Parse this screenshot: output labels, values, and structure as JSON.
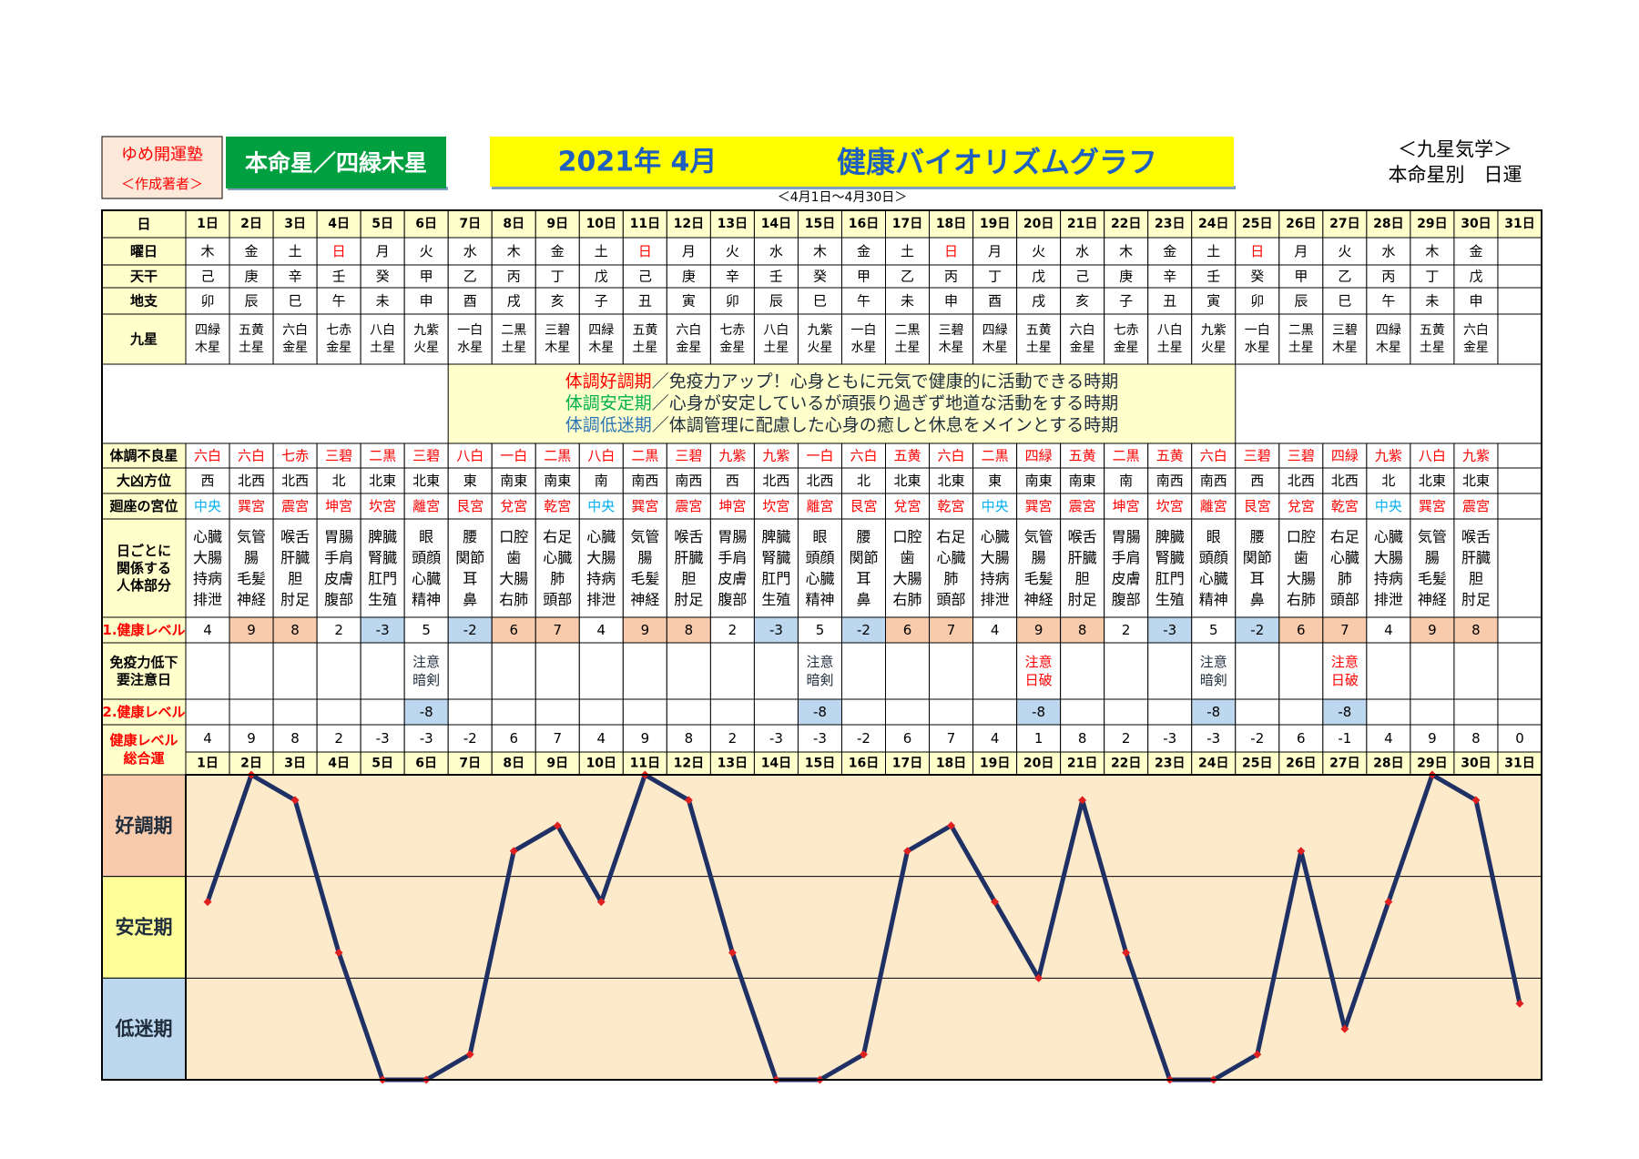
{
  "header": {
    "school": "ゆめ開運塾",
    "author": "＜作成著者＞",
    "honmei": "本命星／四緑木星",
    "year_month": "2021年 4月",
    "title": "健康バイオリズムグラフ",
    "right_1": "＜九星気学＞",
    "right_2": "本命星別　日運",
    "period": "＜4月1日～4月30日＞"
  },
  "table": {
    "labels": {
      "day": "日",
      "weekday": "曜日",
      "stem": "天干",
      "branch": "地支",
      "star": "九星",
      "bad_star": "体調不良星",
      "bad_dir": "大凶方位",
      "palace": "廻座の宮位",
      "body": [
        "日ごとに",
        "関係する",
        "人体部分"
      ],
      "level1": "1.健康レベル",
      "immune": [
        "免疫力低下",
        "要注意日"
      ],
      "level2": "2.健康レベル",
      "total": [
        "健康レベル",
        "総合運"
      ]
    },
    "weekday": [
      {
        "text": "木"
      },
      {
        "text": "金"
      },
      {
        "text": "土"
      },
      {
        "text": "日",
        "color": "#ff0000"
      },
      {
        "text": "月"
      },
      {
        "text": "火"
      },
      {
        "text": "水"
      },
      {
        "text": "木"
      },
      {
        "text": "金"
      },
      {
        "text": "土"
      },
      {
        "text": "日",
        "color": "#ff0000"
      },
      {
        "text": "月"
      },
      {
        "text": "火"
      },
      {
        "text": "水"
      },
      {
        "text": "木"
      },
      {
        "text": "金"
      },
      {
        "text": "土"
      },
      {
        "text": "日",
        "color": "#ff0000"
      },
      {
        "text": "月"
      },
      {
        "text": "火"
      },
      {
        "text": "水"
      },
      {
        "text": "木"
      },
      {
        "text": "金"
      },
      {
        "text": "土"
      },
      {
        "text": "日",
        "color": "#ff0000"
      },
      {
        "text": "月"
      },
      {
        "text": "火"
      },
      {
        "text": "水"
      },
      {
        "text": "木"
      },
      {
        "text": "金"
      },
      null
    ],
    "stem": [
      "己",
      "庚",
      "辛",
      "壬",
      "癸",
      "甲",
      "乙",
      "丙",
      "丁",
      "戊",
      "己",
      "庚",
      "辛",
      "壬",
      "癸",
      "甲",
      "乙",
      "丙",
      "丁",
      "戊",
      "己",
      "庚",
      "辛",
      "壬",
      "癸",
      "甲",
      "乙",
      "丙",
      "丁",
      "戊",
      null
    ],
    "branch": [
      "卯",
      "辰",
      "巳",
      "午",
      "未",
      "申",
      "酉",
      "戌",
      "亥",
      "子",
      "丑",
      "寅",
      "卯",
      "辰",
      "巳",
      "午",
      "未",
      "申",
      "酉",
      "戌",
      "亥",
      "子",
      "丑",
      "寅",
      "卯",
      "辰",
      "巳",
      "午",
      "未",
      "申",
      null
    ],
    "star": [
      [
        "四緑",
        "木星"
      ],
      [
        "五黄",
        "土星"
      ],
      [
        "六白",
        "金星"
      ],
      [
        "七赤",
        "金星"
      ],
      [
        "八白",
        "土星"
      ],
      [
        "九紫",
        "火星"
      ],
      [
        "一白",
        "水星"
      ],
      [
        "二黒",
        "土星"
      ],
      [
        "三碧",
        "木星"
      ],
      [
        "四緑",
        "木星"
      ],
      [
        "五黄",
        "土星"
      ],
      [
        "六白",
        "金星"
      ],
      [
        "七赤",
        "金星"
      ],
      [
        "八白",
        "土星"
      ],
      [
        "九紫",
        "火星"
      ],
      [
        "一白",
        "水星"
      ],
      [
        "二黒",
        "土星"
      ],
      [
        "三碧",
        "木星"
      ],
      [
        "四緑",
        "木星"
      ],
      [
        "五黄",
        "土星"
      ],
      [
        "六白",
        "金星"
      ],
      [
        "七赤",
        "金星"
      ],
      [
        "八白",
        "土星"
      ],
      [
        "九紫",
        "火星"
      ],
      [
        "一白",
        "水星"
      ],
      [
        "二黒",
        "土星"
      ],
      [
        "三碧",
        "木星"
      ],
      [
        "四緑",
        "木星"
      ],
      [
        "五黄",
        "土星"
      ],
      [
        "六白",
        "金星"
      ],
      null
    ],
    "bad_star": [
      "六白",
      "六白",
      "七赤",
      "三碧",
      "二黒",
      "三碧",
      "八白",
      "一白",
      "二黒",
      "八白",
      "二黒",
      "三碧",
      "九紫",
      "九紫",
      "一白",
      "六白",
      "五黄",
      "六白",
      "二黒",
      "四緑",
      "五黄",
      "二黒",
      "五黄",
      "六白",
      "三碧",
      "三碧",
      "四緑",
      "九紫",
      "八白",
      "九紫",
      null
    ],
    "bad_dir": [
      "西",
      "北西",
      "北西",
      "北",
      "北東",
      "北東",
      "東",
      "南東",
      "南東",
      "南",
      "南西",
      "南西",
      "西",
      "北西",
      "北西",
      "北",
      "北東",
      "北東",
      "東",
      "南東",
      "南東",
      "南",
      "南西",
      "南西",
      "西",
      "北西",
      "北西",
      "北",
      "北東",
      "北東",
      null
    ],
    "palace": [
      {
        "name": "中央",
        "color": "#00b0f0"
      },
      {
        "name": "巽宮",
        "color": "#ff0000"
      },
      {
        "name": "震宮",
        "color": "#ff0000"
      },
      {
        "name": "坤宮",
        "color": "#ff0000"
      },
      {
        "name": "坎宮",
        "color": "#ff0000"
      },
      {
        "name": "離宮",
        "color": "#ff0000"
      },
      {
        "name": "艮宮",
        "color": "#ff0000"
      },
      {
        "name": "兌宮",
        "color": "#ff0000"
      },
      {
        "name": "乾宮",
        "color": "#ff0000"
      },
      {
        "name": "中央",
        "color": "#00b0f0"
      },
      {
        "name": "巽宮",
        "color": "#ff0000"
      },
      {
        "name": "震宮",
        "color": "#ff0000"
      },
      {
        "name": "坤宮",
        "color": "#ff0000"
      },
      {
        "name": "坎宮",
        "color": "#ff0000"
      },
      {
        "name": "離宮",
        "color": "#ff0000"
      },
      {
        "name": "艮宮",
        "color": "#ff0000"
      },
      {
        "name": "兌宮",
        "color": "#ff0000"
      },
      {
        "name": "乾宮",
        "color": "#ff0000"
      },
      {
        "name": "中央",
        "color": "#00b0f0"
      },
      {
        "name": "巽宮",
        "color": "#ff0000"
      },
      {
        "name": "震宮",
        "color": "#ff0000"
      },
      {
        "name": "坤宮",
        "color": "#ff0000"
      },
      {
        "name": "坎宮",
        "color": "#ff0000"
      },
      {
        "name": "離宮",
        "color": "#ff0000"
      },
      {
        "name": "艮宮",
        "color": "#ff0000"
      },
      {
        "name": "兌宮",
        "color": "#ff0000"
      },
      {
        "name": "乾宮",
        "color": "#ff0000"
      },
      {
        "name": "中央",
        "color": "#00b0f0"
      },
      {
        "name": "巽宮",
        "color": "#ff0000"
      },
      {
        "name": "震宮",
        "color": "#ff0000"
      },
      null
    ],
    "body": [
      [
        "心臓",
        "大腸",
        "持病",
        "排泄"
      ],
      [
        "気管",
        "腸",
        "毛髪",
        "神経"
      ],
      [
        "喉舌",
        "肝臓",
        "胆",
        "肘足"
      ],
      [
        "胃腸",
        "手肩",
        "皮膚",
        "腹部"
      ],
      [
        "脾臓",
        "腎臓",
        "肛門",
        "生殖"
      ],
      [
        "眼",
        "頭顔",
        "心臓",
        "精神"
      ],
      [
        "腰",
        "関節",
        "耳",
        "鼻"
      ],
      [
        "口腔",
        "歯",
        "大腸",
        "右肺"
      ],
      [
        "右足",
        "心臓",
        "肺",
        "頭部"
      ],
      [
        "心臓",
        "大腸",
        "持病",
        "排泄"
      ],
      [
        "気管",
        "腸",
        "毛髪",
        "神経"
      ],
      [
        "喉舌",
        "肝臓",
        "胆",
        "肘足"
      ],
      [
        "胃腸",
        "手肩",
        "皮膚",
        "腹部"
      ],
      [
        "脾臓",
        "腎臓",
        "肛門",
        "生殖"
      ],
      [
        "眼",
        "頭顔",
        "心臓",
        "精神"
      ],
      [
        "腰",
        "関節",
        "耳",
        "鼻"
      ],
      [
        "口腔",
        "歯",
        "大腸",
        "右肺"
      ],
      [
        "右足",
        "心臓",
        "肺",
        "頭部"
      ],
      [
        "心臓",
        "大腸",
        "持病",
        "排泄"
      ],
      [
        "気管",
        "腸",
        "毛髪",
        "神経"
      ],
      [
        "喉舌",
        "肝臓",
        "胆",
        "肘足"
      ],
      [
        "胃腸",
        "手肩",
        "皮膚",
        "腹部"
      ],
      [
        "脾臓",
        "腎臓",
        "肛門",
        "生殖"
      ],
      [
        "眼",
        "頭顔",
        "心臓",
        "精神"
      ],
      [
        "腰",
        "関節",
        "耳",
        "鼻"
      ],
      [
        "口腔",
        "歯",
        "大腸",
        "右肺"
      ],
      [
        "右足",
        "心臓",
        "肺",
        "頭部"
      ],
      [
        "心臓",
        "大腸",
        "持病",
        "排泄"
      ],
      [
        "気管",
        "腸",
        "毛髪",
        "神経"
      ],
      [
        "喉舌",
        "肝臓",
        "胆",
        "肘足"
      ],
      null
    ],
    "level1": [
      4,
      9,
      8,
      2,
      -3,
      5,
      -2,
      6,
      7,
      4,
      9,
      8,
      2,
      -3,
      5,
      -2,
      6,
      7,
      4,
      9,
      8,
      2,
      -3,
      5,
      -2,
      6,
      7,
      4,
      9,
      8,
      null
    ],
    "immune": [
      null,
      null,
      null,
      null,
      null,
      {
        "lines": [
          "注意",
          "暗剣"
        ],
        "color": "#1f2d3d"
      },
      null,
      null,
      null,
      null,
      null,
      null,
      null,
      null,
      {
        "lines": [
          "注意",
          "暗剣"
        ],
        "color": "#1f2d3d"
      },
      null,
      null,
      null,
      null,
      {
        "lines": [
          "注意",
          "日破"
        ],
        "color": "#ff0000"
      },
      null,
      null,
      null,
      {
        "lines": [
          "注意",
          "暗剣"
        ],
        "color": "#1f2d3d"
      },
      null,
      null,
      {
        "lines": [
          "注意",
          "日破"
        ],
        "color": "#ff0000"
      },
      null,
      null,
      null,
      null
    ],
    "level2": [
      null,
      null,
      null,
      null,
      null,
      -8,
      null,
      null,
      null,
      null,
      null,
      null,
      null,
      null,
      -8,
      null,
      null,
      null,
      null,
      -8,
      null,
      null,
      null,
      -8,
      null,
      null,
      -8,
      null,
      null,
      null,
      null
    ]
  },
  "legend": [
    {
      "term": "体調好調期",
      "text": "／免疫力アップ！心身ともに元気で健康的に活動できる時期",
      "color": "#ff0000"
    },
    {
      "term": "体調安定期",
      "text": "／心身が安定しているが頑張り過ぎず地道な活動をする時期",
      "color": "#00b050"
    },
    {
      "term": "体調低迷期",
      "text": "／体調管理に配慮した心身の癒しと休息をメインとする時期",
      "color": "#2e75b6"
    }
  ],
  "chart_data": {
    "type": "line",
    "categories": [
      "1日",
      "2日",
      "3日",
      "4日",
      "5日",
      "6日",
      "7日",
      "8日",
      "9日",
      "10日",
      "11日",
      "12日",
      "13日",
      "14日",
      "15日",
      "16日",
      "17日",
      "18日",
      "19日",
      "20日",
      "21日",
      "22日",
      "23日",
      "24日",
      "25日",
      "26日",
      "27日",
      "28日",
      "29日",
      "30日",
      "31日"
    ],
    "values": [
      4,
      9,
      8,
      2,
      -3,
      -3,
      -2,
      6,
      7,
      4,
      9,
      8,
      2,
      -3,
      -3,
      -2,
      6,
      7,
      4,
      1,
      8,
      2,
      -3,
      -3,
      -2,
      6,
      -1,
      4,
      9,
      8,
      0
    ],
    "color": "#1f3064",
    "marker_color": "#e02020",
    "plot_color": "#fdeacb",
    "ylim": [
      -3,
      9
    ],
    "yticks": [
      -3,
      1,
      5,
      9
    ],
    "grid": true,
    "bands": [
      {
        "name": "好調期",
        "color": "#f8cbad"
      },
      {
        "name": "安定期",
        "color": "#ffff99"
      },
      {
        "name": "低迷期",
        "color": "#bdd7ee"
      }
    ]
  }
}
